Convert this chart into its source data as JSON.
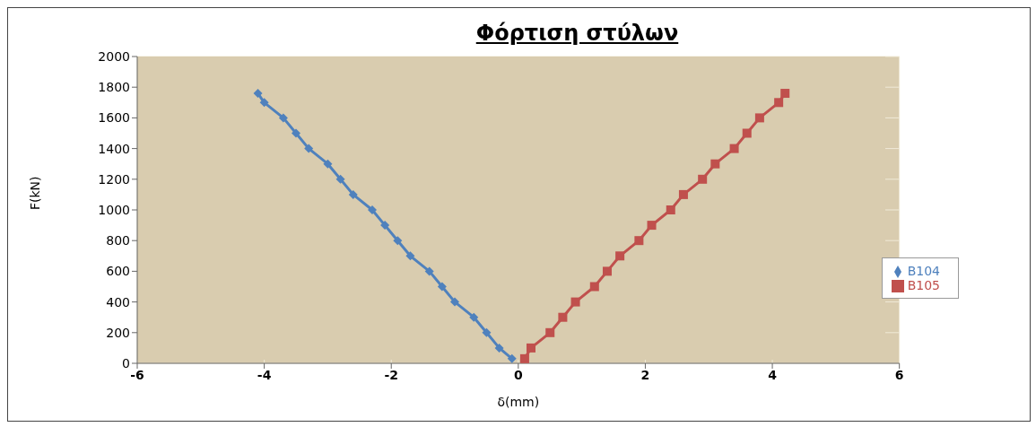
{
  "chart_data": {
    "type": "line",
    "title": "Φόρτιση στύλων",
    "xlabel": "δ(mm)",
    "ylabel": "F(kN)",
    "xlim": [
      -6,
      6
    ],
    "xticks": [
      -6,
      -4,
      -2,
      0,
      2,
      4,
      6
    ],
    "ylim": [
      0,
      2000
    ],
    "yticks": [
      0,
      200,
      400,
      600,
      800,
      1000,
      1200,
      1400,
      1600,
      1800,
      2000
    ],
    "grid": true,
    "legend": "right",
    "series": [
      {
        "name": "B104",
        "color": "#4f81bd",
        "marker": "diamond",
        "x": [
          -0.1,
          -0.3,
          -0.5,
          -0.7,
          -1.0,
          -1.2,
          -1.4,
          -1.7,
          -1.9,
          -2.1,
          -2.3,
          -2.6,
          -2.8,
          -3.0,
          -3.3,
          -3.5,
          -3.7,
          -4.0,
          -4.1
        ],
        "values": [
          30,
          100,
          200,
          300,
          400,
          500,
          600,
          700,
          800,
          900,
          1000,
          1100,
          1200,
          1300,
          1400,
          1500,
          1600,
          1700,
          1760
        ]
      },
      {
        "name": "B105",
        "color": "#c0504d",
        "marker": "square",
        "x": [
          0.1,
          0.2,
          0.5,
          0.7,
          0.9,
          1.2,
          1.4,
          1.6,
          1.9,
          2.1,
          2.4,
          2.6,
          2.9,
          3.1,
          3.4,
          3.6,
          3.8,
          4.1,
          4.2
        ],
        "values": [
          30,
          100,
          200,
          300,
          400,
          500,
          600,
          700,
          800,
          900,
          1000,
          1100,
          1200,
          1300,
          1400,
          1500,
          1600,
          1700,
          1760
        ]
      }
    ]
  }
}
